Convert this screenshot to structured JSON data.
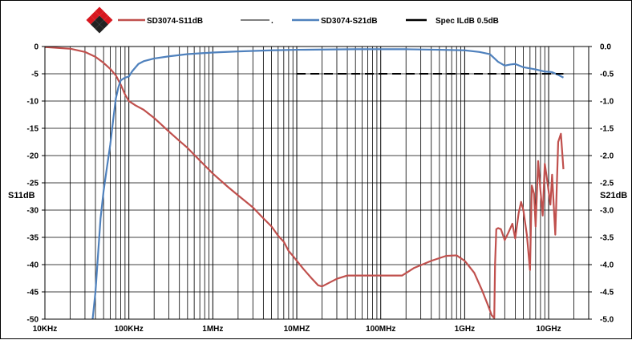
{
  "chart_data": {
    "type": "line",
    "x_scale": "log",
    "xlim": [
      10000,
      30000000000
    ],
    "y_left": {
      "label": "S11dB",
      "lim": [
        -50,
        0
      ],
      "ticks": [
        "0",
        "-5",
        "-10",
        "-15",
        "-20",
        "-25",
        "-30",
        "-35",
        "-40",
        "-45",
        "-50"
      ]
    },
    "y_right": {
      "label": "S21dB",
      "lim": [
        -5.0,
        0.0
      ],
      "ticks": [
        "0.0",
        "-0.5",
        "-1.0",
        "-1.5",
        "-2.0",
        "-2.5",
        "-3.0",
        "-3.5",
        "-4.0",
        "-4.5",
        "-5.0"
      ]
    },
    "x_ticks": [
      {
        "value": 10000,
        "label": "10KHz"
      },
      {
        "value": 100000,
        "label": "100KHz"
      },
      {
        "value": 1000000,
        "label": "1MHz"
      },
      {
        "value": 10000000,
        "label": "10MHZ"
      },
      {
        "value": 100000000,
        "label": "100MHz"
      },
      {
        "value": 1000000000,
        "label": "1GHz"
      },
      {
        "value": 10000000000,
        "label": "10GHz"
      }
    ],
    "grid": true,
    "legend_position": "top",
    "legend": [
      {
        "label": "SD3074-S11dB",
        "color": "#c0504d"
      },
      {
        "label": ".",
        "color": "#000000"
      },
      {
        "label": "SD3074-S21dB",
        "color": "#4f81bd"
      },
      {
        "label": "Spec ILdB 0.5dB",
        "color": "#000000"
      }
    ],
    "series": [
      {
        "name": "SD3074-S11dB",
        "axis": "left",
        "color": "#c0504d",
        "points": [
          [
            10000,
            -0.1
          ],
          [
            20000,
            -0.4
          ],
          [
            30000,
            -1.0
          ],
          [
            40000,
            -1.9
          ],
          [
            50000,
            -3.0
          ],
          [
            60000,
            -4.1
          ],
          [
            70000,
            -5.3
          ],
          [
            80000,
            -7.0
          ],
          [
            90000,
            -8.8
          ],
          [
            100000,
            -10.0
          ],
          [
            120000,
            -10.8
          ],
          [
            150000,
            -11.6
          ],
          [
            200000,
            -13.1
          ],
          [
            300000,
            -15.6
          ],
          [
            400000,
            -17.3
          ],
          [
            500000,
            -18.6
          ],
          [
            700000,
            -20.9
          ],
          [
            1000000,
            -23.3
          ],
          [
            1500000,
            -25.7
          ],
          [
            2000000,
            -27.3
          ],
          [
            3000000,
            -29.5
          ],
          [
            4000000,
            -31.5
          ],
          [
            5000000,
            -33.0
          ],
          [
            6000000,
            -34.7
          ],
          [
            7000000,
            -35.8
          ],
          [
            8000000,
            -37.5
          ],
          [
            9000000,
            -38.4
          ],
          [
            10000000,
            -39.3
          ],
          [
            12000000,
            -40.8
          ],
          [
            15000000,
            -42.5
          ],
          [
            18000000,
            -43.8
          ],
          [
            20000000,
            -44.0
          ],
          [
            30000000,
            -42.6
          ],
          [
            40000000,
            -42.0
          ],
          [
            100000000,
            -42.0
          ],
          [
            180000000,
            -42.0
          ],
          [
            250000000,
            -40.6
          ],
          [
            400000000,
            -39.3
          ],
          [
            600000000,
            -38.4
          ],
          [
            800000000,
            -38.3
          ],
          [
            1000000000,
            -39.3
          ],
          [
            1300000000,
            -41.5
          ],
          [
            1600000000,
            -44.6
          ],
          [
            1900000000,
            -47.5
          ],
          [
            2100000000,
            -49.3
          ],
          [
            2250000000,
            -49.8
          ],
          [
            2300000000,
            -40.0
          ],
          [
            2380000000,
            -33.5
          ],
          [
            2500000000,
            -33.3
          ],
          [
            2700000000,
            -33.5
          ],
          [
            3000000000,
            -35.5
          ],
          [
            3300000000,
            -34.2
          ],
          [
            3700000000,
            -32.5
          ],
          [
            4000000000,
            -35.2
          ],
          [
            4400000000,
            -30.5
          ],
          [
            4700000000,
            -28.5
          ],
          [
            5000000000,
            -30.0
          ],
          [
            5500000000,
            -34.5
          ],
          [
            6000000000,
            -41.0
          ],
          [
            6300000000,
            -25.5
          ],
          [
            6700000000,
            -27.0
          ],
          [
            7000000000,
            -33.0
          ],
          [
            7500000000,
            -21.0
          ],
          [
            8000000000,
            -26.5
          ],
          [
            8500000000,
            -31.0
          ],
          [
            9000000000,
            -21.5
          ],
          [
            9500000000,
            -24.0
          ],
          [
            10500000000,
            -29.0
          ],
          [
            11000000000,
            -23.5
          ],
          [
            12000000000,
            -34.5
          ],
          [
            13000000000,
            -17.5
          ],
          [
            14000000000,
            -16.0
          ],
          [
            15000000000,
            -22.5
          ]
        ]
      },
      {
        "name": "SD3074-S21dB",
        "axis": "right",
        "color": "#4f81bd",
        "points": [
          [
            37000,
            -5.0
          ],
          [
            40000,
            -4.5
          ],
          [
            43000,
            -3.8
          ],
          [
            46000,
            -3.15
          ],
          [
            50000,
            -2.65
          ],
          [
            55000,
            -2.2
          ],
          [
            60000,
            -1.8
          ],
          [
            65000,
            -1.35
          ],
          [
            70000,
            -0.95
          ],
          [
            75000,
            -0.75
          ],
          [
            80000,
            -0.62
          ],
          [
            90000,
            -0.57
          ],
          [
            100000,
            -0.55
          ],
          [
            110000,
            -0.45
          ],
          [
            130000,
            -0.32
          ],
          [
            150000,
            -0.27
          ],
          [
            200000,
            -0.22
          ],
          [
            300000,
            -0.18
          ],
          [
            500000,
            -0.14
          ],
          [
            1000000,
            -0.11
          ],
          [
            2000000,
            -0.09
          ],
          [
            5000000,
            -0.07
          ],
          [
            10000000,
            -0.06
          ],
          [
            50000000,
            -0.05
          ],
          [
            100000000,
            -0.05
          ],
          [
            200000000,
            -0.05
          ],
          [
            500000000,
            -0.06
          ],
          [
            1000000000,
            -0.07
          ],
          [
            1500000000,
            -0.1
          ],
          [
            2000000000,
            -0.14
          ],
          [
            2500000000,
            -0.28
          ],
          [
            3000000000,
            -0.35
          ],
          [
            3500000000,
            -0.33
          ],
          [
            4000000000,
            -0.32
          ],
          [
            5000000000,
            -0.38
          ],
          [
            7000000000,
            -0.42
          ],
          [
            9000000000,
            -0.46
          ],
          [
            11000000000,
            -0.47
          ],
          [
            13000000000,
            -0.52
          ],
          [
            15000000000,
            -0.57
          ]
        ]
      },
      {
        "name": "Spec ILdB 0.5dB",
        "axis": "right",
        "color": "#000000",
        "dashed": true,
        "points": [
          [
            10000000,
            -0.5
          ],
          [
            15000000000,
            -0.5
          ]
        ]
      }
    ]
  },
  "colors": {
    "gridline": "#000000",
    "background": "#ffffff",
    "logo_red": "#d7171f",
    "logo_dark": "#222222"
  },
  "logo": {
    "icon": "diamond-logo-icon"
  }
}
